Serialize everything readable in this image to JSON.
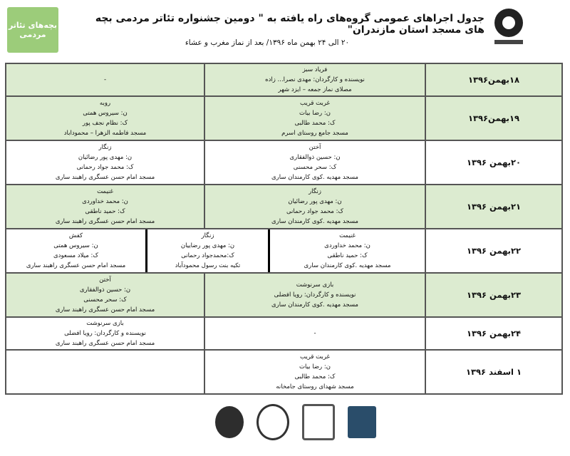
{
  "header": {
    "title": "جدول اجراهای عمومی گروه‌های راه یافته به \" دومین جشنواره تئاتر مردمی بچه های مسجد استان مازندران\"",
    "subtitle": "۲۰ الی ۲۴ بهمن ماه ۱۳۹۶/ بعد از نماز مغرب و عشاء",
    "logo_left_text": "بچه‌های تئاتر مردمی"
  },
  "rows": [
    {
      "date": "۱۸بهمن۱۳۹۶",
      "green": true,
      "cells": [
        [
          "فریاد سبز",
          "نویسنده و کارگردان: مهدی نصرا... زاده",
          "مصلای نماز جمعه – ایزد شهر"
        ],
        [
          "-"
        ]
      ]
    },
    {
      "date": "۱۹بهمن۱۳۹۶",
      "green": true,
      "cells": [
        [
          "غربت قریب",
          "ن: رضا بیات",
          "ک: محمد طالبی",
          "مسجد جامع روستای اسرم"
        ],
        [
          "روبه",
          "ن: سیروس همتی",
          "ک: نظام نجف پور",
          "مسجد فاطمه الزهرا – محموداباد"
        ]
      ]
    },
    {
      "date": "۲۰بهمن ۱۳۹۶",
      "green": false,
      "cells": [
        [
          "آختن",
          "ن: حسین ذوالفقاری",
          "ک: سحر محسنی",
          "مسجد مهدیه .کوی کارمندان ساری"
        ],
        [
          "زنگار",
          "ن: مهدی پور رضائیان",
          "ک: محمد جواد رحمانی",
          "مسجد امام حسن عسگری راهبند ساری"
        ]
      ]
    },
    {
      "date": "۲۱بهمن ۱۳۹۶",
      "green": true,
      "cells": [
        [
          "زنگار",
          "ن: مهدی پور رضائیان",
          "ک: محمد جواد رحمانی",
          "مسجد مهدیه .کوی کارمندان ساری"
        ],
        [
          "غنیمت",
          "ن: محمد خداوردی",
          "ک: حمید ناطقی",
          "مسجد امام حسن عسگری راهبند ساری"
        ]
      ]
    },
    {
      "date": "۲۲بهمن ۱۳۹۶",
      "green": false,
      "cells": [
        [
          "غنیمت",
          "ن: محمد خداوردی",
          "ک: حمید ناطقی",
          "مسجد مهدیه .کوی کارمندان ساری"
        ],
        [
          "زنگار",
          "ن: مهدی پور رضاییان",
          "ک:محمدجواد رحمانی",
          "تکیه بنت رسول محمودآباد"
        ],
        [
          "کفش",
          "ن: سیروس همتی",
          "ک: میلاد مسعودی",
          "مسجد امام حسن عسگری راهبند ساری"
        ]
      ]
    },
    {
      "date": "۲۳بهمن ۱۳۹۶",
      "green": true,
      "cells": [
        [
          "بازی سرنوشت",
          "نویسنده و کارگردان: رویا افضلی",
          "مسجد مهدیه .کوی کارمندان ساری"
        ],
        [
          "آختن",
          "ن: حسین ذوالفقاری",
          "ک: سحر محسنی",
          "مسجد امام حسن عسگری راهبند ساری"
        ]
      ]
    },
    {
      "date": "۲۴بهمن ۱۳۹۶",
      "green": false,
      "cells": [
        [
          "-"
        ],
        [
          "بازی سرنوشت",
          "نویسنده و کارگردان: رویا افضلی",
          "مسجد امام حسن عسگری راهبند ساری"
        ]
      ]
    },
    {
      "date": "۱  اسفند  ۱۳۹۶",
      "green": false,
      "cells": [
        [
          "غربت قریب",
          "ن: رضا بیات",
          "ک: محمد طالبی",
          "مسجد شهدای روستای جامخانه"
        ],
        [
          ""
        ]
      ]
    }
  ],
  "colors": {
    "row_green": "#dcebd0",
    "logo_green": "#9ccc7a"
  }
}
